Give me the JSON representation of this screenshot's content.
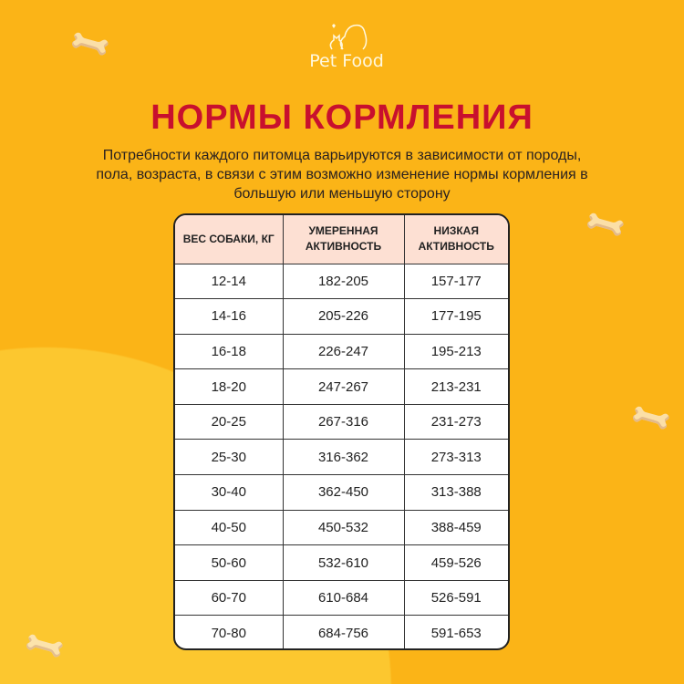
{
  "logo": {
    "name": "Pet Food",
    "icon": "dog-cat-icon"
  },
  "title": "НОРМЫ КОРМЛЕНИЯ",
  "subtitle": "Потребности каждого питомца варьируются в зависимости от породы, пола, возраста, в связи с этим возможно изменение нормы кормления в большую или меньшую сторону",
  "table": {
    "headers": [
      "ВЕС СОБАКИ, КГ",
      "УМЕРЕННАЯ АКТИВНОСТЬ",
      "НИЗКАЯ АКТИВНОСТЬ"
    ],
    "rows": [
      [
        "12-14",
        "182-205",
        "157-177"
      ],
      [
        "14-16",
        "205-226",
        "177-195"
      ],
      [
        "16-18",
        "226-247",
        "195-213"
      ],
      [
        "18-20",
        "247-267",
        "213-231"
      ],
      [
        "20-25",
        "267-316",
        "231-273"
      ],
      [
        "25-30",
        "316-362",
        "273-313"
      ],
      [
        "30-40",
        "362-450",
        "313-388"
      ],
      [
        "40-50",
        "450-532",
        "388-459"
      ],
      [
        "50-60",
        "532-610",
        "459-526"
      ],
      [
        "60-70",
        "610-684",
        "526-591"
      ],
      [
        "70-80",
        "684-756",
        "591-653"
      ]
    ]
  },
  "colors": {
    "background": "#fbb417",
    "title": "#c8102e",
    "header_bg": "#fde0d3"
  }
}
